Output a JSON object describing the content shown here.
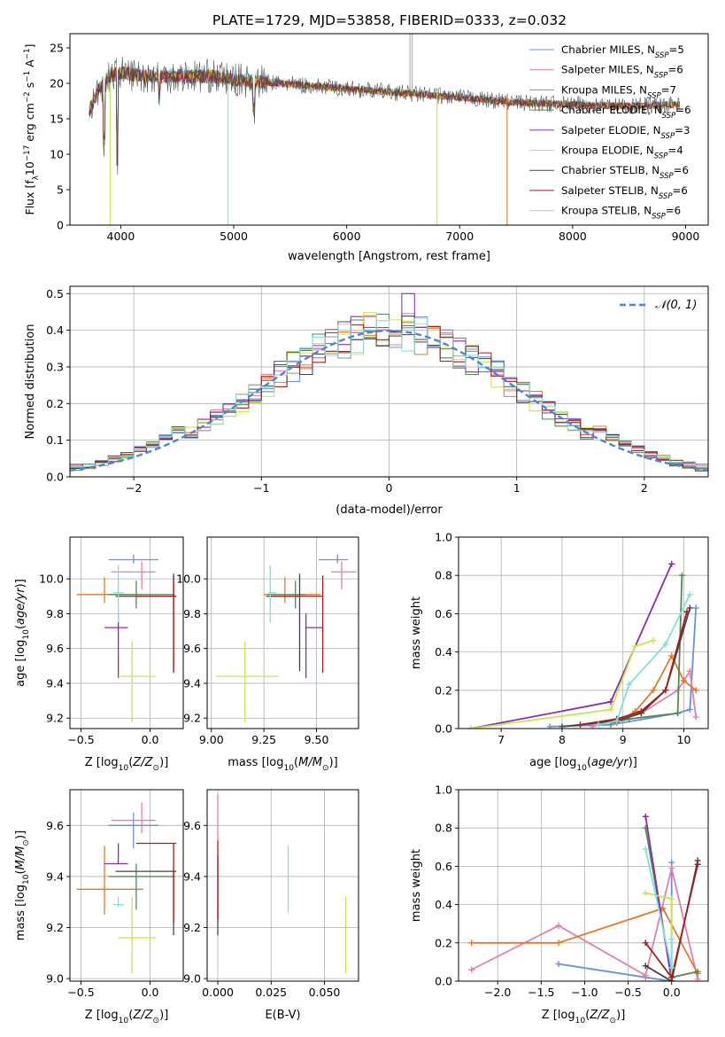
{
  "title": "PLATE=1729, MJD=53858, FIBERID=0333, z=0.032",
  "colors": {
    "chabrier_miles": "#6a8fdc",
    "salpeter_miles": "#e07fb0",
    "kroupa_miles": "#e07a2a",
    "chabrier_elodie": "#4f8a55",
    "salpeter_elodie": "#8e2ca8",
    "kroupa_elodie": "#c8e64c",
    "chabrier_stelib": "#444444",
    "salpeter_stelib": "#a31f1f",
    "kroupa_stelib": "#7fe0dc",
    "normal_curve": "#4b86d6",
    "grid": "#b0b0b0"
  },
  "chart_data": [
    {
      "id": "spectrum",
      "type": "line",
      "xlabel": "wavelength [Angstrom, rest frame]",
      "ylabel": "Flux [f_λ 10^-17 erg cm^-2 s^-1 A^-1]",
      "xlim": [
        3550,
        9200
      ],
      "ylim": [
        0,
        27
      ],
      "xticks": [
        4000,
        5000,
        6000,
        7000,
        8000,
        9000
      ],
      "yticks": [
        0,
        5,
        10,
        15,
        20,
        25
      ],
      "legend_position": "top-right",
      "legend": [
        {
          "label": "Chabrier MILES, N",
          "sub": "SSP",
          "suffix": "=5",
          "color": "#6a8fdc"
        },
        {
          "label": "Salpeter MILES, N",
          "sub": "SSP",
          "suffix": "=6",
          "color": "#e07fb0"
        },
        {
          "label": "Kroupa MILES, N",
          "sub": "SSP",
          "suffix": "=7",
          "color": "#e07a2a"
        },
        {
          "label": "Chabrier ELODIE, N",
          "sub": "SSP",
          "suffix": "=6",
          "color": "#4f8a55"
        },
        {
          "label": "Salpeter ELODIE, N",
          "sub": "SSP",
          "suffix": "=3",
          "color": "#8e2ca8"
        },
        {
          "label": "Kroupa ELODIE, N",
          "sub": "SSP",
          "suffix": "=4",
          "color": "#c8e64c"
        },
        {
          "label": "Chabrier STELIB, N",
          "sub": "SSP",
          "suffix": "=6",
          "color": "#444444"
        },
        {
          "label": "Salpeter STELIB, N",
          "sub": "SSP",
          "suffix": "=6",
          "color": "#a31f1f"
        },
        {
          "label": "Kroupa STELIB, N",
          "sub": "SSP",
          "suffix": "=6",
          "color": "#7fe0dc"
        }
      ],
      "continuum": [
        [
          3720,
          16
        ],
        [
          3800,
          19
        ],
        [
          3900,
          21
        ],
        [
          4000,
          21.5
        ],
        [
          4200,
          21
        ],
        [
          4500,
          21
        ],
        [
          4800,
          21
        ],
        [
          5000,
          20.5
        ],
        [
          5400,
          20
        ],
        [
          5800,
          19.5
        ],
        [
          6200,
          19
        ],
        [
          6600,
          18.5
        ],
        [
          7000,
          18
        ],
        [
          7500,
          17.3
        ],
        [
          8000,
          17
        ],
        [
          8500,
          16.8
        ],
        [
          8950,
          17
        ]
      ],
      "spikes": [
        {
          "x": 3905,
          "y0": 20,
          "y1": 0,
          "color": "#c8e64c"
        },
        {
          "x": 4950,
          "y0": 20,
          "y1": 0,
          "color": "#7fe0dc"
        },
        {
          "x": 6800,
          "y0": 19,
          "y1": 0,
          "color": "#c8e64c"
        },
        {
          "x": 7420,
          "y0": 18,
          "y1": 0,
          "color": "#e07a2a"
        },
        {
          "x": 6560,
          "y0": 19,
          "y1": 27,
          "color": "#aaaaaa"
        },
        {
          "x": 6580,
          "y0": 19,
          "y1": 27,
          "color": "#aaaaaa"
        }
      ]
    },
    {
      "id": "residuals",
      "type": "histogram",
      "xlabel": "(data-model)/error",
      "ylabel": "Normed distribution",
      "xlim": [
        -2.5,
        2.5
      ],
      "ylim": [
        0,
        0.52
      ],
      "xticks": [
        -2,
        -1,
        0,
        1,
        2
      ],
      "yticks": [
        0.0,
        0.1,
        0.2,
        0.3,
        0.4,
        0.5
      ],
      "bin_width": 0.1,
      "legend_position": "top-right",
      "normal_label": "𝒩(0, 1)"
    },
    {
      "id": "z_age",
      "type": "scatter",
      "xlabel": "Z [log10(Z/Z⊙)]",
      "ylabel": "age [log10(age/yr)]",
      "xlim": [
        -0.58,
        0.24
      ],
      "ylim": [
        9.14,
        10.24
      ],
      "xticks": [
        -0.5,
        0.0
      ],
      "yticks": [
        9.2,
        9.4,
        9.6,
        9.8,
        10.0
      ],
      "points": [
        {
          "key": "chabrier_miles",
          "x": -0.12,
          "xe": [
            0.18,
            0.18
          ],
          "y": 10.11,
          "ye": [
            0.02,
            0.03
          ]
        },
        {
          "key": "salpeter_miles",
          "x": -0.06,
          "xe": [
            0.22,
            0.1
          ],
          "y": 10.04,
          "ye": [
            0.1,
            0.06
          ]
        },
        {
          "key": "kroupa_miles",
          "x": -0.33,
          "xe": [
            0.2,
            0.28
          ],
          "y": 9.91,
          "ye": [
            0.05,
            0.1
          ]
        },
        {
          "key": "chabrier_elodie",
          "x": -0.1,
          "xe": [
            0.2,
            0.28
          ],
          "y": 9.91,
          "ye": [
            0.08,
            0.08
          ]
        },
        {
          "key": "salpeter_elodie",
          "x": -0.23,
          "xe": [
            0.1,
            0.07
          ],
          "y": 9.72,
          "ye": [
            0.29,
            0.08
          ]
        },
        {
          "key": "kroupa_elodie",
          "x": -0.13,
          "xe": [
            0.1,
            0.17
          ],
          "y": 9.44,
          "ye": [
            0.26,
            0.2
          ]
        },
        {
          "key": "chabrier_stelib",
          "x": 0.17,
          "xe": [
            0.42,
            0.02
          ],
          "y": 9.9,
          "ye": [
            0.43,
            0.13
          ]
        },
        {
          "key": "salpeter_stelib",
          "x": 0.17,
          "xe": [
            0.27,
            0.02
          ],
          "y": 9.9,
          "ye": [
            0.44,
            0.12
          ]
        },
        {
          "key": "kroupa_stelib",
          "x": -0.23,
          "xe": [
            0.04,
            0.04
          ],
          "y": 9.92,
          "ye": [
            0.17,
            0.16
          ]
        }
      ]
    },
    {
      "id": "mass_age",
      "type": "scatter",
      "xlabel": "mass [log10(M/M⊙)]",
      "ylabel": "",
      "xlim": [
        8.98,
        9.7
      ],
      "ylim": [
        9.14,
        10.24
      ],
      "xticks": [
        9.0,
        9.25,
        9.5
      ],
      "yticks": [
        9.2,
        9.4,
        9.6,
        9.8,
        10.0
      ],
      "points": [
        {
          "key": "chabrier_miles",
          "x": 9.6,
          "xe": [
            0.09,
            0.05
          ],
          "y": 10.11,
          "ye": [
            0.02,
            0.03
          ]
        },
        {
          "key": "salpeter_miles",
          "x": 9.62,
          "xe": [
            0.05,
            0.07
          ],
          "y": 10.04,
          "ye": [
            0.1,
            0.06
          ]
        },
        {
          "key": "kroupa_miles",
          "x": 9.35,
          "xe": [
            0.1,
            0.17
          ],
          "y": 9.91,
          "ye": [
            0.05,
            0.1
          ]
        },
        {
          "key": "chabrier_elodie",
          "x": 9.4,
          "xe": [
            0.13,
            0.05
          ],
          "y": 9.91,
          "ye": [
            0.08,
            0.08
          ]
        },
        {
          "key": "salpeter_elodie",
          "x": 9.45,
          "xe": [
            0.0,
            0.08
          ],
          "y": 9.72,
          "ye": [
            0.29,
            0.08
          ]
        },
        {
          "key": "kroupa_elodie",
          "x": 9.16,
          "xe": [
            0.14,
            0.16
          ],
          "y": 9.44,
          "ye": [
            0.26,
            0.2
          ]
        },
        {
          "key": "chabrier_stelib",
          "x": 9.42,
          "xe": [
            0.16,
            0.0
          ],
          "y": 9.9,
          "ye": [
            0.43,
            0.13
          ]
        },
        {
          "key": "salpeter_stelib",
          "x": 9.53,
          "xe": [
            0.25,
            0.0
          ],
          "y": 9.9,
          "ye": [
            0.44,
            0.12
          ]
        },
        {
          "key": "kroupa_stelib",
          "x": 9.28,
          "xe": [
            0.01,
            0.03
          ],
          "y": 9.92,
          "ye": [
            0.17,
            0.16
          ]
        }
      ]
    },
    {
      "id": "age_weight",
      "type": "line",
      "xlabel": "age [log10(age/yr)]",
      "ylabel": "mass weight",
      "xlim": [
        6.3,
        10.4
      ],
      "ylim": [
        0,
        1
      ],
      "xticks": [
        7,
        8,
        9,
        10
      ],
      "yticks": [
        0.0,
        0.2,
        0.4,
        0.6,
        0.8,
        1.0
      ],
      "series": [
        {
          "key": "chabrier_miles",
          "x": [
            7.8,
            8.8,
            9.9,
            10.1,
            10.2
          ],
          "y": [
            0.01,
            0.02,
            0.08,
            0.1,
            0.63
          ]
        },
        {
          "key": "salpeter_miles",
          "x": [
            8.5,
            8.9,
            9.3,
            9.9,
            10.1,
            10.2
          ],
          "y": [
            0.01,
            0.05,
            0.08,
            0.2,
            0.3,
            0.06
          ]
        },
        {
          "key": "kroupa_miles",
          "x": [
            8.9,
            9.2,
            9.5,
            9.8,
            10.0,
            10.2
          ],
          "y": [
            0.03,
            0.09,
            0.2,
            0.38,
            0.25,
            0.2
          ]
        },
        {
          "key": "chabrier_elodie",
          "x": [
            8.8,
            9.1,
            9.9,
            9.97
          ],
          "y": [
            0.03,
            0.05,
            0.08,
            0.8
          ]
        },
        {
          "key": "salpeter_elodie",
          "x": [
            6.5,
            8.8,
            9.8
          ],
          "y": [
            0.0,
            0.14,
            0.86
          ]
        },
        {
          "key": "kroupa_elodie",
          "x": [
            6.5,
            8.8,
            9.2,
            9.5
          ],
          "y": [
            0.0,
            0.1,
            0.43,
            0.46
          ]
        },
        {
          "key": "chabrier_stelib",
          "x": [
            8.0,
            8.9,
            9.3,
            9.7,
            10.1
          ],
          "y": [
            0.01,
            0.04,
            0.08,
            0.2,
            0.63
          ]
        },
        {
          "key": "salpeter_stelib",
          "x": [
            8.3,
            8.9,
            9.3,
            9.7,
            10.05
          ],
          "y": [
            0.02,
            0.05,
            0.09,
            0.2,
            0.61
          ]
        },
        {
          "key": "kroupa_stelib",
          "x": [
            8.6,
            8.9,
            9.1,
            9.7,
            10.1
          ],
          "y": [
            0.02,
            0.04,
            0.23,
            0.44,
            0.7
          ]
        }
      ]
    },
    {
      "id": "z_mass",
      "type": "scatter",
      "xlabel": "Z [log10(Z/Z⊙)]",
      "ylabel": "mass [log10(M/M⊙)]",
      "xlim": [
        -0.58,
        0.24
      ],
      "ylim": [
        8.99,
        9.74
      ],
      "xticks": [
        -0.5,
        0.0
      ],
      "yticks": [
        9.0,
        9.2,
        9.4,
        9.6
      ],
      "points": [
        {
          "key": "chabrier_miles",
          "x": -0.12,
          "xe": [
            0.18,
            0.18
          ],
          "y": 9.6,
          "ye": [
            0.09,
            0.05
          ]
        },
        {
          "key": "salpeter_miles",
          "x": -0.06,
          "xe": [
            0.22,
            0.1
          ],
          "y": 9.62,
          "ye": [
            0.05,
            0.07
          ]
        },
        {
          "key": "kroupa_miles",
          "x": -0.33,
          "xe": [
            0.2,
            0.28
          ],
          "y": 9.35,
          "ye": [
            0.1,
            0.17
          ]
        },
        {
          "key": "chabrier_elodie",
          "x": -0.1,
          "xe": [
            0.2,
            0.28
          ],
          "y": 9.4,
          "ye": [
            0.13,
            0.05
          ]
        },
        {
          "key": "salpeter_elodie",
          "x": -0.23,
          "xe": [
            0.1,
            0.07
          ],
          "y": 9.45,
          "ye": [
            0.0,
            0.08
          ]
        },
        {
          "key": "kroupa_elodie",
          "x": -0.13,
          "xe": [
            0.1,
            0.17
          ],
          "y": 9.16,
          "ye": [
            0.14,
            0.16
          ]
        },
        {
          "key": "chabrier_stelib",
          "x": 0.17,
          "xe": [
            0.42,
            0.02
          ],
          "y": 9.42,
          "ye": [
            0.25,
            0.0
          ]
        },
        {
          "key": "salpeter_stelib",
          "x": 0.17,
          "xe": [
            0.27,
            0.02
          ],
          "y": 9.53,
          "ye": [
            0.31,
            0.0
          ]
        },
        {
          "key": "kroupa_stelib",
          "x": -0.23,
          "xe": [
            0.04,
            0.04
          ],
          "y": 9.29,
          "ye": [
            0.01,
            0.03
          ]
        }
      ]
    },
    {
      "id": "ebv_mass",
      "type": "scatter",
      "xlabel": "E(B-V)",
      "ylabel": "",
      "xlim": [
        -0.005,
        0.066
      ],
      "ylim": [
        8.99,
        9.74
      ],
      "xticks": [
        0.0,
        0.025,
        0.05
      ],
      "yticks": [
        9.0,
        9.2,
        9.4,
        9.6
      ],
      "points": [
        {
          "key": "salpeter_miles",
          "x": 0.0,
          "y": 9.62,
          "ye": [
            0.08,
            0.1
          ]
        },
        {
          "key": "chabrier_stelib",
          "x": 0.0,
          "y": 9.4,
          "ye": [
            0.23,
            0.08
          ]
        },
        {
          "key": "salpeter_stelib",
          "x": 0.0,
          "y": 9.4,
          "ye": [
            0.17,
            0.14
          ]
        },
        {
          "key": "kroupa_stelib",
          "x": 0.033,
          "y": 9.39,
          "ye": [
            0.13,
            0.13
          ]
        },
        {
          "key": "kroupa_elodie",
          "x": 0.06,
          "y": 9.17,
          "ye": [
            0.15,
            0.15
          ]
        }
      ]
    },
    {
      "id": "z_weight",
      "type": "line",
      "xlabel": "Z [log10(Z/Z⊙)]",
      "ylabel": "mass weight",
      "xlim": [
        -2.45,
        0.42
      ],
      "ylim": [
        0,
        1
      ],
      "xticks": [
        -2.0,
        -1.5,
        -1.0,
        -0.5,
        0.0
      ],
      "yticks": [
        0.0,
        0.2,
        0.4,
        0.6,
        0.8,
        1.0
      ],
      "series": [
        {
          "key": "chabrier_miles",
          "x": [
            -1.3,
            -0.3,
            0.0,
            0.0
          ],
          "y": [
            0.09,
            0.02,
            0.0,
            0.62
          ]
        },
        {
          "key": "salpeter_miles",
          "x": [
            -2.3,
            -1.3,
            -0.3,
            0.0,
            0.3
          ],
          "y": [
            0.06,
            0.29,
            0.03,
            0.59,
            0.01
          ]
        },
        {
          "key": "kroupa_miles",
          "x": [
            -2.3,
            -1.3,
            -0.1,
            0.3
          ],
          "y": [
            0.2,
            0.2,
            0.38,
            0.04
          ]
        },
        {
          "key": "chabrier_elodie",
          "x": [
            -0.3,
            0.0,
            0.3
          ],
          "y": [
            0.8,
            0.02,
            0.05
          ]
        },
        {
          "key": "salpeter_elodie",
          "x": [
            -0.3,
            0.0
          ],
          "y": [
            0.86,
            0.0
          ]
        },
        {
          "key": "kroupa_elodie",
          "x": [
            -0.3,
            0.0,
            0.0
          ],
          "y": [
            0.46,
            0.43,
            0.0
          ]
        },
        {
          "key": "chabrier_stelib",
          "x": [
            -0.3,
            0.0,
            0.3
          ],
          "y": [
            0.08,
            0.0,
            0.63
          ]
        },
        {
          "key": "salpeter_stelib",
          "x": [
            -0.3,
            0.0,
            0.3
          ],
          "y": [
            0.2,
            0.02,
            0.61
          ]
        },
        {
          "key": "kroupa_stelib",
          "x": [
            -0.3,
            0.0,
            0.0
          ],
          "y": [
            0.69,
            0.07,
            0.22
          ]
        }
      ]
    }
  ]
}
